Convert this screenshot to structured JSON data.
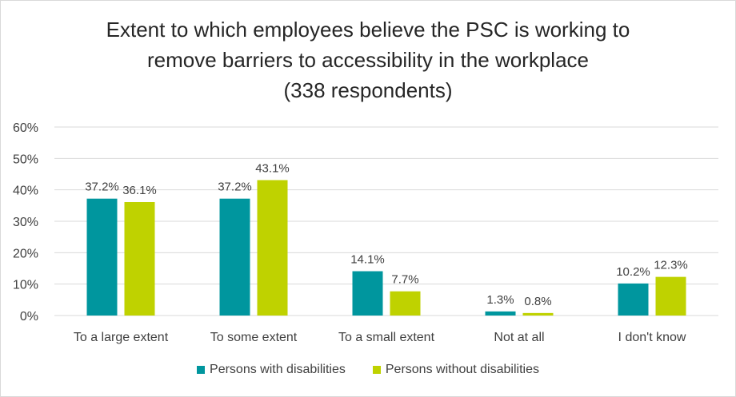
{
  "title": {
    "line1": "Extent to which employees believe the PSC is working to",
    "line2": "remove barriers to accessibility in the workplace",
    "line3": "(338 respondents)"
  },
  "legend": {
    "items": [
      {
        "label": "Persons with disabilities",
        "color": "#00969e"
      },
      {
        "label": "Persons without disabilities",
        "color": "#bfd200"
      }
    ]
  },
  "chart_data": {
    "type": "bar",
    "title": "Extent to which employees believe the PSC is working to remove barriers to accessibility in the workplace (338 respondents)",
    "categories": [
      "To a large extent",
      "To some extent",
      "To a small extent",
      "Not at all",
      "I don't know"
    ],
    "series": [
      {
        "name": "Persons with disabilities",
        "values": [
          37.2,
          37.2,
          14.1,
          1.3,
          10.2
        ],
        "labels": [
          "37.2%",
          "37.2%",
          "14.1%",
          "1.3%",
          "10.2%"
        ],
        "color": "#00969e"
      },
      {
        "name": "Persons without disabilities",
        "values": [
          36.1,
          43.1,
          7.7,
          0.8,
          12.3
        ],
        "labels": [
          "36.1%",
          "43.1%",
          "7.7%",
          "0.8%",
          "12.3%"
        ],
        "color": "#bfd200"
      }
    ],
    "ylim": [
      0,
      60
    ],
    "yticks": [
      0,
      10,
      20,
      30,
      40,
      50,
      60
    ],
    "ytick_labels": [
      "0%",
      "10%",
      "20%",
      "30%",
      "40%",
      "50%",
      "60%"
    ],
    "grid": true,
    "legend_position": "bottom"
  }
}
